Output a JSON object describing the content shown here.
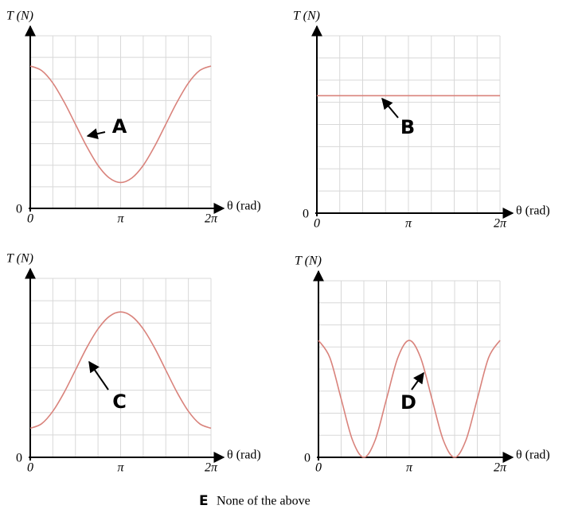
{
  "chart_data": [
    {
      "type": "line",
      "y_label": "T (N)",
      "x_label": "θ (rad)",
      "annotation": "A",
      "color": "#d9837c",
      "grid": true,
      "xlim": [
        0,
        6.283
      ],
      "ylim": [
        0,
        8
      ],
      "xticks": [
        0,
        {
          "value": 3.142,
          "label": "π"
        },
        {
          "value": 6.283,
          "label": "2π"
        }
      ],
      "yticks": [
        0
      ],
      "grid_x": [
        0.785,
        1.571,
        2.356,
        3.142,
        3.927,
        4.712,
        5.498,
        6.283
      ],
      "grid_y": [
        1,
        2,
        3,
        4,
        5,
        6,
        7,
        8
      ],
      "x": [
        0,
        0.393,
        0.785,
        1.178,
        1.571,
        1.963,
        2.356,
        2.749,
        3.142,
        3.534,
        3.927,
        4.32,
        4.712,
        5.105,
        5.498,
        5.89,
        6.283
      ],
      "values": [
        6.6,
        6.39,
        5.81,
        4.93,
        3.9,
        2.87,
        1.99,
        1.41,
        1.2,
        1.41,
        1.99,
        2.87,
        3.9,
        4.93,
        5.81,
        6.39,
        6.6
      ]
    },
    {
      "type": "line",
      "y_label": "T (N)",
      "x_label": "θ (rad)",
      "annotation": "B",
      "color": "#d9837c",
      "grid": true,
      "xlim": [
        0,
        6.283
      ],
      "ylim": [
        0,
        8
      ],
      "xticks": [
        0,
        {
          "value": 3.142,
          "label": "π"
        },
        {
          "value": 6.283,
          "label": "2π"
        }
      ],
      "yticks": [
        0
      ],
      "grid_x": [
        0.785,
        1.571,
        2.356,
        3.142,
        3.927,
        4.712,
        5.498,
        6.283
      ],
      "grid_y": [
        1,
        2,
        3,
        4,
        5,
        6,
        7,
        8
      ],
      "x": [
        0,
        6.283
      ],
      "values": [
        5.3,
        5.3
      ]
    },
    {
      "type": "line",
      "y_label": "T (N)",
      "x_label": "θ (rad)",
      "annotation": "C",
      "color": "#d9837c",
      "grid": true,
      "xlim": [
        0,
        6.283
      ],
      "ylim": [
        0,
        8
      ],
      "xticks": [
        0,
        {
          "value": 3.142,
          "label": "π"
        },
        {
          "value": 6.283,
          "label": "2π"
        }
      ],
      "yticks": [
        0
      ],
      "grid_x": [
        0.785,
        1.571,
        2.356,
        3.142,
        3.927,
        4.712,
        5.498,
        6.283
      ],
      "grid_y": [
        1,
        2,
        3,
        4,
        5,
        6,
        7,
        8
      ],
      "x": [
        0,
        0.393,
        0.785,
        1.178,
        1.571,
        1.963,
        2.356,
        2.749,
        3.142,
        3.534,
        3.927,
        4.32,
        4.712,
        5.105,
        5.498,
        5.89,
        6.283
      ],
      "values": [
        1.3,
        1.5,
        2.06,
        2.9,
        3.9,
        4.9,
        5.74,
        6.3,
        6.5,
        6.3,
        5.74,
        4.9,
        3.9,
        2.9,
        2.06,
        1.5,
        1.3
      ]
    },
    {
      "type": "line",
      "y_label": "T (N)",
      "x_label": "θ (rad)",
      "annotation": "D",
      "color": "#d9837c",
      "grid": true,
      "xlim": [
        0,
        6.283
      ],
      "ylim": [
        0,
        8
      ],
      "xticks": [
        0,
        {
          "value": 3.142,
          "label": "π"
        },
        {
          "value": 6.283,
          "label": "2π"
        }
      ],
      "yticks": [
        0
      ],
      "grid_x": [
        0.785,
        1.571,
        2.356,
        3.142,
        3.927,
        4.712,
        5.498,
        6.283
      ],
      "grid_y": [
        1,
        2,
        3,
        4,
        5,
        6,
        7,
        8
      ],
      "x": [
        0,
        0.393,
        0.785,
        1.178,
        1.571,
        1.963,
        2.356,
        2.749,
        3.142,
        3.534,
        3.927,
        4.32,
        4.712,
        5.105,
        5.498,
        5.89,
        6.283
      ],
      "values": [
        5.3,
        4.52,
        2.65,
        0.78,
        0,
        0.78,
        2.65,
        4.52,
        5.3,
        4.52,
        2.65,
        0.78,
        0,
        0.78,
        2.65,
        4.52,
        5.3
      ]
    }
  ],
  "footer": {
    "letter": "E",
    "text": "None of the above"
  }
}
